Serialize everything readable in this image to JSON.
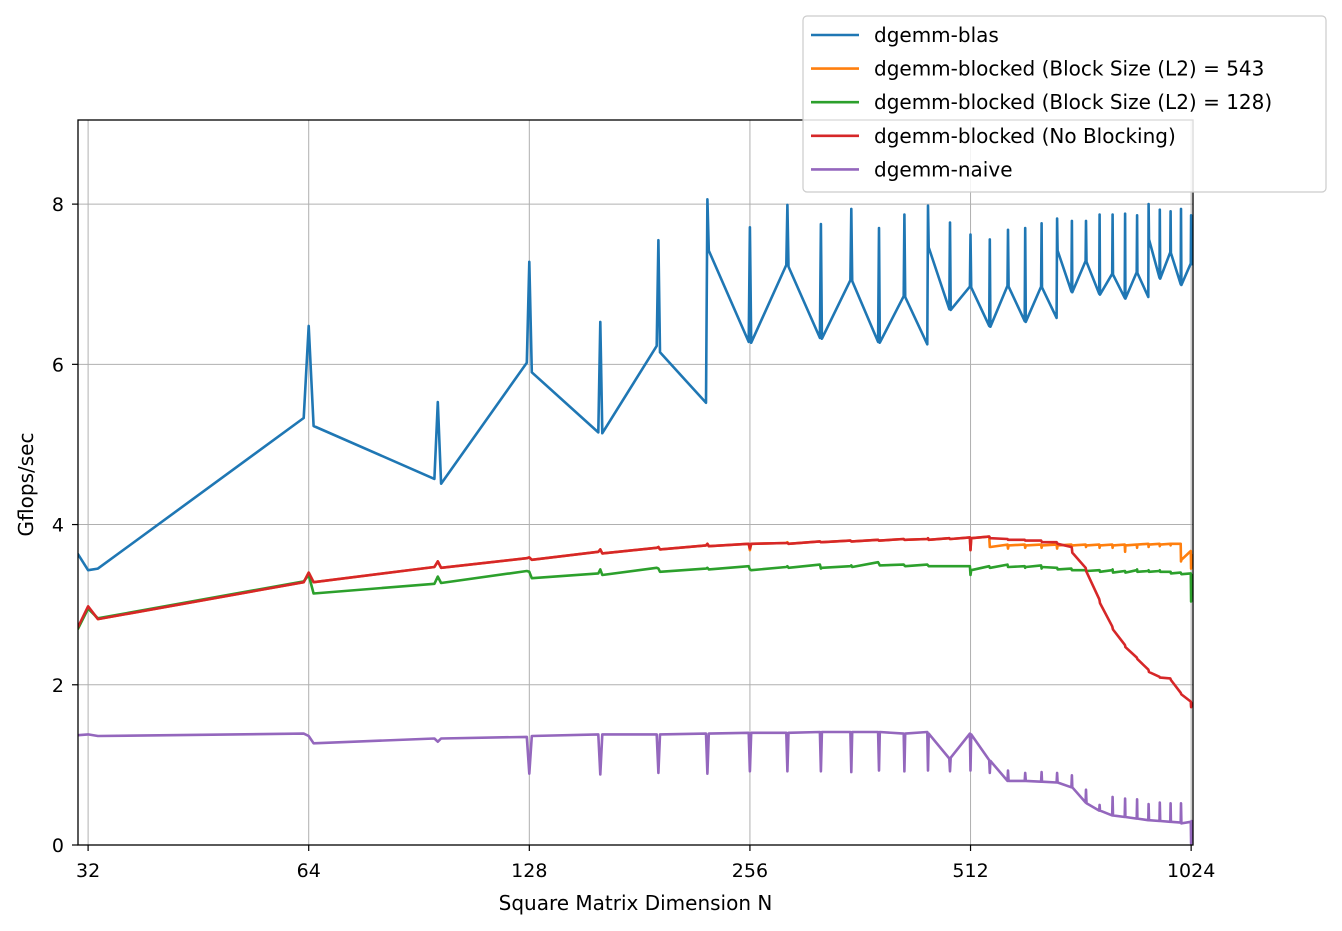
{
  "chart_data": {
    "type": "line",
    "xlabel": "Square Matrix Dimension N",
    "ylabel": "Gflops/sec",
    "x_scale": "log2",
    "xlim": [
      31,
      1030
    ],
    "ylim": [
      0,
      9.05
    ],
    "x_ticks": [
      32,
      64,
      128,
      256,
      512,
      1024
    ],
    "x_tick_labels": [
      "32",
      "64",
      "128",
      "256",
      "512",
      "1024"
    ],
    "y_ticks": [
      0,
      2,
      4,
      6,
      8
    ],
    "y_tick_labels": [
      "0",
      "2",
      "4",
      "6",
      "8"
    ],
    "grid": true,
    "legend_position": "top-right",
    "series": [
      {
        "name": "dgemm-blas",
        "color": "#1f77b4",
        "x": [
          31,
          32,
          33,
          63,
          64,
          65,
          95,
          96,
          97,
          127,
          128,
          129,
          159,
          160,
          161,
          191,
          192,
          193,
          223,
          224,
          225,
          255,
          256,
          257,
          287,
          288,
          289,
          319,
          320,
          321,
          351,
          352,
          353,
          383,
          384,
          385,
          415,
          416,
          417,
          447,
          448,
          449,
          479,
          480,
          481,
          511,
          512,
          513,
          543,
          544,
          545,
          575,
          576,
          577,
          607,
          608,
          609,
          639,
          640,
          641,
          671,
          672,
          673,
          703,
          704,
          705,
          735,
          736,
          737,
          767,
          768,
          769,
          799,
          800,
          801,
          831,
          832,
          833,
          863,
          864,
          865,
          895,
          896,
          897,
          927,
          928,
          929,
          959,
          960,
          961,
          991,
          992,
          993,
          1023,
          1024,
          1025
        ],
        "values": [
          3.63,
          3.43,
          3.45,
          5.33,
          6.48,
          5.23,
          4.57,
          5.53,
          4.51,
          6.02,
          7.28,
          5.9,
          5.15,
          6.53,
          5.14,
          6.23,
          7.55,
          6.15,
          5.52,
          8.06,
          7.42,
          6.28,
          7.71,
          6.27,
          7.24,
          7.99,
          7.22,
          6.33,
          7.75,
          6.32,
          7.05,
          7.94,
          7.04,
          6.28,
          7.7,
          6.27,
          6.85,
          7.87,
          6.84,
          6.25,
          7.98,
          7.46,
          6.69,
          7.77,
          6.68,
          6.97,
          7.62,
          6.96,
          6.48,
          7.56,
          6.47,
          6.98,
          7.68,
          6.97,
          6.54,
          7.7,
          6.53,
          6.97,
          7.76,
          6.96,
          6.58,
          7.82,
          7.42,
          6.91,
          7.79,
          6.9,
          7.29,
          7.79,
          7.28,
          6.88,
          7.87,
          6.87,
          7.13,
          7.87,
          7.12,
          6.83,
          7.88,
          6.82,
          7.15,
          7.86,
          7.14,
          6.84,
          8.0,
          7.56,
          7.08,
          7.93,
          7.07,
          7.4,
          7.91,
          7.39,
          7.0,
          7.94,
          6.99,
          7.26,
          7.86,
          7.25
        ]
      },
      {
        "name": "dgemm-blocked (Block Size (L2) = 543",
        "color": "#ff7f0e",
        "x": [
          31,
          32,
          33,
          63,
          64,
          65,
          95,
          96,
          97,
          127,
          128,
          129,
          159,
          160,
          161,
          191,
          192,
          193,
          223,
          224,
          225,
          255,
          256,
          257,
          287,
          288,
          289,
          319,
          320,
          321,
          351,
          352,
          353,
          383,
          384,
          385,
          415,
          416,
          417,
          447,
          448,
          449,
          479,
          480,
          481,
          511,
          512,
          513,
          543,
          544,
          545,
          575,
          576,
          577,
          607,
          608,
          609,
          639,
          640,
          641,
          671,
          672,
          673,
          703,
          704,
          705,
          735,
          736,
          737,
          767,
          768,
          769,
          799,
          800,
          801,
          831,
          832,
          833,
          863,
          864,
          865,
          895,
          896,
          897,
          927,
          928,
          929,
          959,
          960,
          961,
          991,
          992,
          993,
          1023,
          1024,
          1025
        ],
        "values": [
          2.7,
          2.97,
          2.82,
          3.28,
          3.4,
          3.28,
          3.47,
          3.54,
          3.46,
          3.58,
          3.59,
          3.56,
          3.66,
          3.69,
          3.64,
          3.71,
          3.72,
          3.69,
          3.74,
          3.76,
          3.73,
          3.76,
          3.68,
          3.76,
          3.77,
          3.78,
          3.76,
          3.79,
          3.78,
          3.78,
          3.8,
          3.79,
          3.79,
          3.81,
          3.8,
          3.8,
          3.82,
          3.81,
          3.81,
          3.82,
          3.83,
          3.81,
          3.83,
          3.82,
          3.82,
          3.84,
          3.68,
          3.83,
          3.85,
          3.72,
          3.72,
          3.75,
          3.7,
          3.74,
          3.75,
          3.71,
          3.74,
          3.75,
          3.71,
          3.74,
          3.75,
          3.7,
          3.74,
          3.75,
          3.72,
          3.74,
          3.75,
          3.72,
          3.74,
          3.75,
          3.71,
          3.74,
          3.75,
          3.71,
          3.74,
          3.75,
          3.66,
          3.74,
          3.75,
          3.71,
          3.75,
          3.76,
          3.72,
          3.75,
          3.76,
          3.73,
          3.75,
          3.76,
          3.74,
          3.76,
          3.76,
          3.54,
          3.56,
          3.67,
          3.45,
          3.62
        ]
      },
      {
        "name": "dgemm-blocked (Block Size (L2) = 128)",
        "color": "#2ca02c",
        "x": [
          31,
          32,
          33,
          63,
          64,
          65,
          95,
          96,
          97,
          127,
          128,
          129,
          159,
          160,
          161,
          191,
          192,
          193,
          223,
          224,
          225,
          255,
          256,
          257,
          287,
          288,
          289,
          319,
          320,
          321,
          351,
          352,
          353,
          383,
          384,
          385,
          415,
          416,
          417,
          447,
          448,
          449,
          479,
          480,
          481,
          511,
          512,
          513,
          543,
          544,
          545,
          575,
          576,
          577,
          607,
          608,
          609,
          639,
          640,
          641,
          671,
          672,
          673,
          703,
          704,
          705,
          735,
          736,
          737,
          767,
          768,
          769,
          799,
          800,
          801,
          831,
          832,
          833,
          863,
          864,
          865,
          895,
          896,
          897,
          927,
          928,
          929,
          959,
          960,
          961,
          991,
          992,
          993,
          1023,
          1024,
          1025
        ],
        "values": [
          2.7,
          2.95,
          2.83,
          3.29,
          3.37,
          3.14,
          3.26,
          3.35,
          3.27,
          3.42,
          3.41,
          3.33,
          3.39,
          3.44,
          3.37,
          3.46,
          3.45,
          3.41,
          3.45,
          3.46,
          3.44,
          3.48,
          3.44,
          3.43,
          3.47,
          3.48,
          3.46,
          3.5,
          3.45,
          3.46,
          3.48,
          3.49,
          3.47,
          3.53,
          3.51,
          3.49,
          3.5,
          3.49,
          3.48,
          3.5,
          3.49,
          3.48,
          3.48,
          3.48,
          3.48,
          3.48,
          3.37,
          3.43,
          3.48,
          3.46,
          3.46,
          3.5,
          3.47,
          3.47,
          3.48,
          3.46,
          3.47,
          3.49,
          3.45,
          3.47,
          3.46,
          3.46,
          3.44,
          3.45,
          3.43,
          3.43,
          3.43,
          3.42,
          3.42,
          3.43,
          3.43,
          3.41,
          3.43,
          3.44,
          3.4,
          3.42,
          3.42,
          3.4,
          3.43,
          3.44,
          3.41,
          3.42,
          3.43,
          3.41,
          3.42,
          3.43,
          3.41,
          3.41,
          3.41,
          3.39,
          3.4,
          3.39,
          3.38,
          3.39,
          3.04,
          3.37
        ]
      },
      {
        "name": "dgemm-blocked (No Blocking)",
        "color": "#d62728",
        "x": [
          31,
          32,
          33,
          63,
          64,
          65,
          95,
          96,
          97,
          127,
          128,
          129,
          159,
          160,
          161,
          191,
          192,
          193,
          223,
          224,
          225,
          255,
          256,
          257,
          287,
          288,
          289,
          319,
          320,
          321,
          351,
          352,
          353,
          383,
          384,
          385,
          415,
          416,
          417,
          447,
          448,
          449,
          479,
          480,
          481,
          511,
          512,
          513,
          543,
          544,
          545,
          575,
          576,
          577,
          607,
          608,
          609,
          639,
          640,
          641,
          671,
          672,
          673,
          703,
          704,
          705,
          735,
          736,
          737,
          767,
          768,
          769,
          799,
          800,
          801,
          831,
          832,
          833,
          863,
          864,
          865,
          895,
          896,
          897,
          927,
          928,
          929,
          959,
          960,
          961,
          991,
          992,
          993,
          1023,
          1024,
          1025
        ],
        "values": [
          2.72,
          2.98,
          2.82,
          3.28,
          3.4,
          3.28,
          3.47,
          3.54,
          3.46,
          3.58,
          3.59,
          3.56,
          3.66,
          3.69,
          3.64,
          3.71,
          3.72,
          3.69,
          3.74,
          3.76,
          3.73,
          3.76,
          3.7,
          3.76,
          3.77,
          3.77,
          3.76,
          3.79,
          3.78,
          3.78,
          3.8,
          3.79,
          3.79,
          3.81,
          3.8,
          3.8,
          3.82,
          3.81,
          3.81,
          3.82,
          3.83,
          3.81,
          3.83,
          3.82,
          3.82,
          3.84,
          3.68,
          3.83,
          3.85,
          3.84,
          3.83,
          3.82,
          3.81,
          3.81,
          3.81,
          3.8,
          3.8,
          3.8,
          3.79,
          3.78,
          3.78,
          3.77,
          3.76,
          3.72,
          3.7,
          3.65,
          3.46,
          3.44,
          3.41,
          3.07,
          3.05,
          3.02,
          2.73,
          2.71,
          2.69,
          2.5,
          2.49,
          2.47,
          2.34,
          2.33,
          2.32,
          2.19,
          2.18,
          2.16,
          2.1,
          2.09,
          2.09,
          2.08,
          2.07,
          2.06,
          1.9,
          1.89,
          1.88,
          1.79,
          1.72,
          1.77
        ]
      },
      {
        "name": "dgemm-naive",
        "color": "#9467bd",
        "x": [
          31,
          32,
          33,
          63,
          64,
          65,
          95,
          96,
          97,
          127,
          128,
          129,
          159,
          160,
          161,
          191,
          192,
          193,
          223,
          224,
          225,
          255,
          256,
          257,
          287,
          288,
          289,
          319,
          320,
          321,
          351,
          352,
          353,
          383,
          384,
          385,
          415,
          416,
          417,
          447,
          448,
          449,
          479,
          480,
          481,
          511,
          512,
          513,
          543,
          544,
          545,
          575,
          576,
          577,
          607,
          608,
          609,
          639,
          640,
          641,
          671,
          672,
          673,
          703,
          704,
          705,
          735,
          736,
          737,
          767,
          768,
          769,
          799,
          800,
          801,
          831,
          832,
          833,
          863,
          864,
          865,
          895,
          896,
          897,
          927,
          928,
          929,
          959,
          960,
          961,
          991,
          992,
          993,
          1023,
          1024,
          1025
        ],
        "values": [
          1.37,
          1.38,
          1.36,
          1.39,
          1.36,
          1.27,
          1.33,
          1.29,
          1.33,
          1.35,
          0.89,
          1.36,
          1.38,
          0.88,
          1.38,
          1.38,
          0.9,
          1.38,
          1.39,
          0.89,
          1.39,
          1.4,
          0.92,
          1.4,
          1.4,
          0.92,
          1.4,
          1.41,
          0.92,
          1.41,
          1.41,
          0.91,
          1.41,
          1.41,
          0.93,
          1.41,
          1.39,
          0.92,
          1.39,
          1.41,
          0.93,
          1.39,
          1.08,
          0.92,
          1.09,
          1.39,
          0.93,
          1.38,
          1.06,
          0.9,
          1.05,
          0.8,
          0.93,
          0.8,
          0.8,
          0.9,
          0.8,
          0.79,
          0.91,
          0.79,
          0.78,
          0.9,
          0.78,
          0.72,
          0.87,
          0.72,
          0.53,
          0.69,
          0.52,
          0.43,
          0.5,
          0.43,
          0.37,
          0.6,
          0.37,
          0.35,
          0.58,
          0.35,
          0.33,
          0.57,
          0.33,
          0.31,
          0.51,
          0.31,
          0.3,
          0.53,
          0.3,
          0.29,
          0.52,
          0.29,
          0.28,
          0.52,
          0.27,
          0.29,
          0.02,
          0.3
        ]
      }
    ]
  }
}
